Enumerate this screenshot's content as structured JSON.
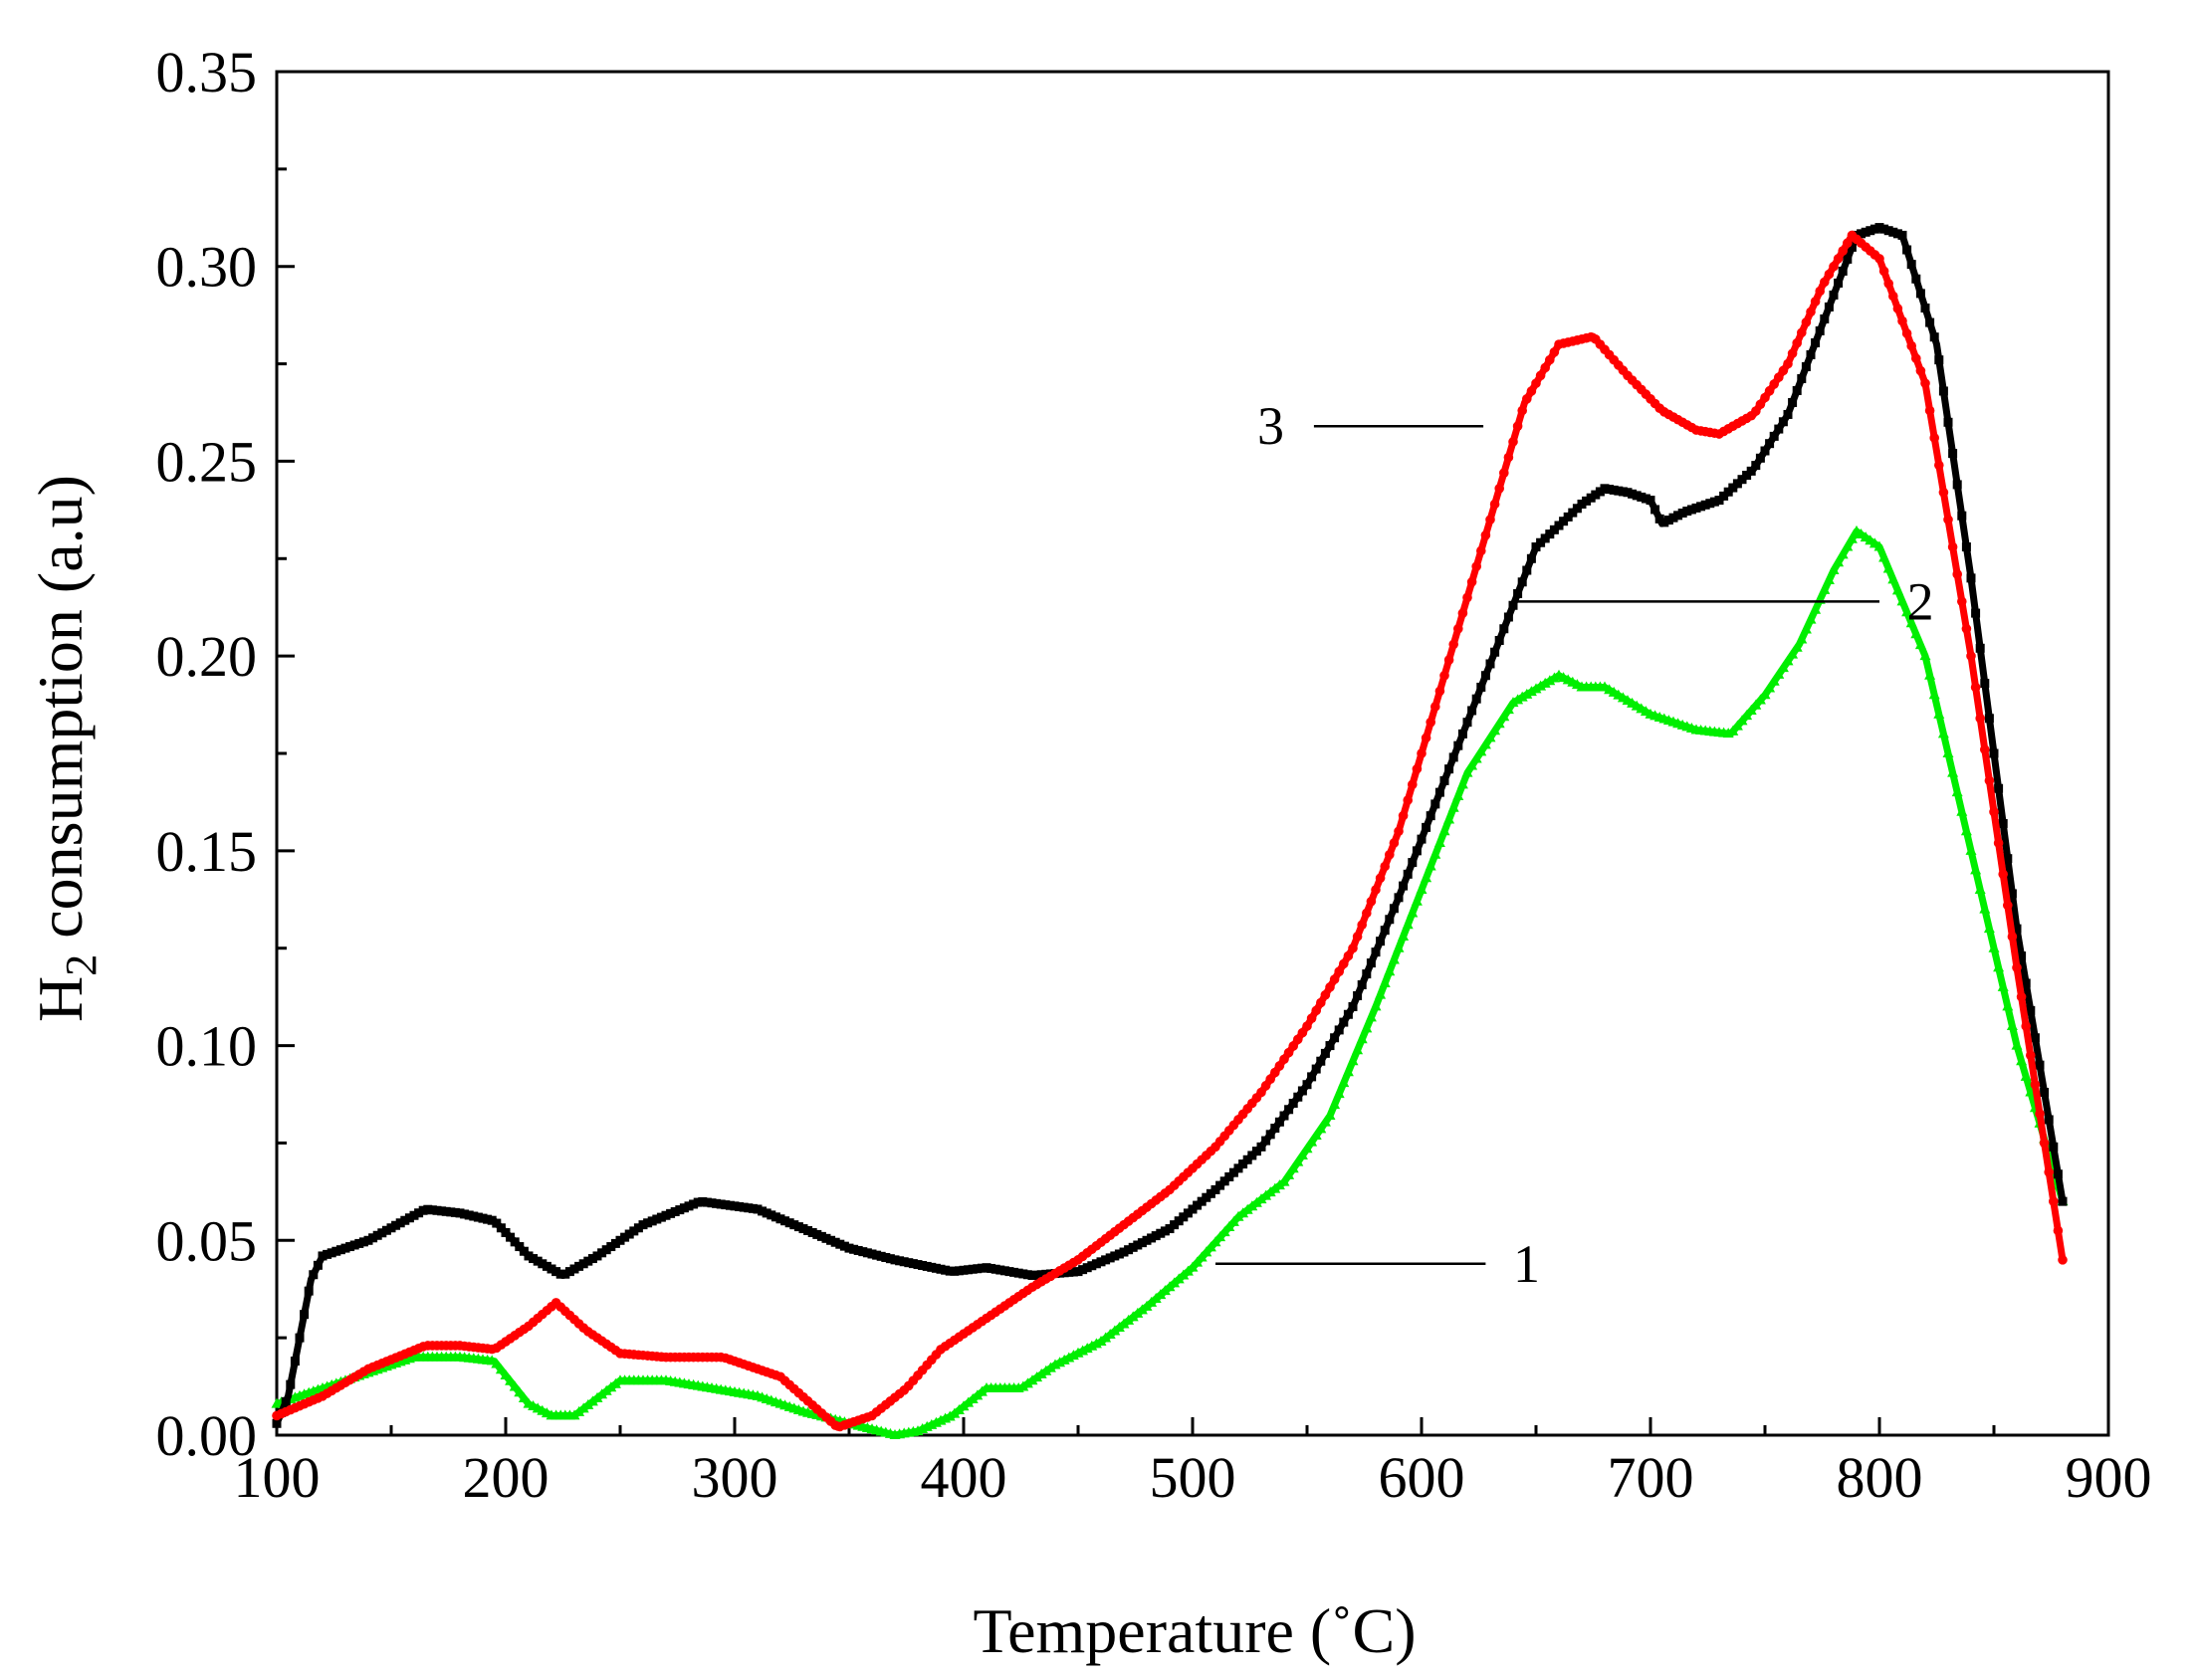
{
  "chart_data": {
    "type": "line",
    "title": "",
    "xlabel": "Temperature (˚C)",
    "ylabel_main": "H",
    "ylabel_sub": "2",
    "ylabel_rest": " consumption (a.u)",
    "xlim": [
      100,
      900
    ],
    "ylim": [
      0,
      0.35
    ],
    "xticks": [
      100,
      200,
      300,
      400,
      500,
      600,
      700,
      800,
      900
    ],
    "xtick_labels": [
      "100",
      "200",
      "300",
      "400",
      "500",
      "600",
      "700",
      "800",
      "900"
    ],
    "yticks": [
      0,
      0.05,
      0.1,
      0.15,
      0.2,
      0.25,
      0.3,
      0.35
    ],
    "ytick_labels": [
      "0.00",
      "0.05",
      "0.10",
      "0.15",
      "0.20",
      "0.25",
      "0.30",
      "0.35"
    ],
    "series": [
      {
        "name": "1",
        "color": "#00ee00",
        "marker": "triangle",
        "x": [
          100,
          120,
          140,
          160,
          180,
          195,
          210,
          220,
          230,
          250,
          270,
          290,
          310,
          330,
          350,
          370,
          380,
          395,
          410,
          425,
          440,
          460,
          480,
          500,
          520,
          540,
          560,
          580,
          600,
          620,
          640,
          660,
          670,
          680,
          700,
          720,
          735,
          750,
          765,
          780,
          790,
          800,
          820,
          840,
          860,
          880
        ],
        "values": [
          0.008,
          0.012,
          0.016,
          0.02,
          0.02,
          0.019,
          0.008,
          0.005,
          0.005,
          0.014,
          0.014,
          0.012,
          0.01,
          0.006,
          0.003,
          0.0,
          0.001,
          0.005,
          0.012,
          0.012,
          0.018,
          0.024,
          0.033,
          0.043,
          0.056,
          0.065,
          0.082,
          0.11,
          0.14,
          0.17,
          0.188,
          0.195,
          0.192,
          0.192,
          0.185,
          0.181,
          0.18,
          0.19,
          0.203,
          0.222,
          0.232,
          0.228,
          0.2,
          0.15,
          0.1,
          0.06
        ]
      },
      {
        "name": "2",
        "color": "#000000",
        "marker": "square",
        "x": [
          100,
          105,
          110,
          115,
          120,
          140,
          165,
          180,
          195,
          210,
          225,
          240,
          260,
          285,
          310,
          330,
          350,
          370,
          395,
          410,
          430,
          450,
          470,
          490,
          510,
          530,
          550,
          570,
          590,
          610,
          630,
          650,
          670,
          680,
          690,
          700,
          705,
          715,
          730,
          745,
          760,
          775,
          790,
          800,
          810,
          825,
          840,
          860,
          880
        ],
        "values": [
          0.003,
          0.01,
          0.025,
          0.04,
          0.046,
          0.05,
          0.058,
          0.057,
          0.055,
          0.046,
          0.041,
          0.046,
          0.054,
          0.06,
          0.058,
          0.053,
          0.048,
          0.045,
          0.042,
          0.043,
          0.041,
          0.042,
          0.047,
          0.053,
          0.063,
          0.074,
          0.09,
          0.11,
          0.138,
          0.168,
          0.198,
          0.228,
          0.239,
          0.243,
          0.242,
          0.24,
          0.234,
          0.237,
          0.24,
          0.248,
          0.262,
          0.285,
          0.308,
          0.31,
          0.308,
          0.28,
          0.22,
          0.13,
          0.06
        ]
      },
      {
        "name": "3",
        "color": "#ff0000",
        "marker": "circle",
        "x": [
          100,
          120,
          140,
          165,
          180,
          195,
          210,
          222,
          235,
          250,
          270,
          295,
          320,
          345,
          360,
          375,
          390,
          410,
          430,
          450,
          470,
          490,
          510,
          530,
          550,
          570,
          590,
          610,
          630,
          645,
          660,
          675,
          690,
          705,
          720,
          730,
          745,
          760,
          775,
          788,
          800,
          820,
          840,
          860,
          880
        ],
        "values": [
          0.005,
          0.01,
          0.017,
          0.023,
          0.023,
          0.022,
          0.028,
          0.034,
          0.027,
          0.021,
          0.02,
          0.02,
          0.015,
          0.002,
          0.005,
          0.012,
          0.022,
          0.03,
          0.038,
          0.045,
          0.054,
          0.063,
          0.074,
          0.088,
          0.105,
          0.125,
          0.155,
          0.195,
          0.235,
          0.265,
          0.28,
          0.282,
          0.272,
          0.263,
          0.258,
          0.257,
          0.262,
          0.275,
          0.295,
          0.308,
          0.302,
          0.27,
          0.2,
          0.12,
          0.045
        ]
      }
    ],
    "annotations": [
      {
        "label": "1",
        "series": "1"
      },
      {
        "label": "2",
        "series": "2"
      },
      {
        "label": "3",
        "series": "3"
      }
    ]
  }
}
